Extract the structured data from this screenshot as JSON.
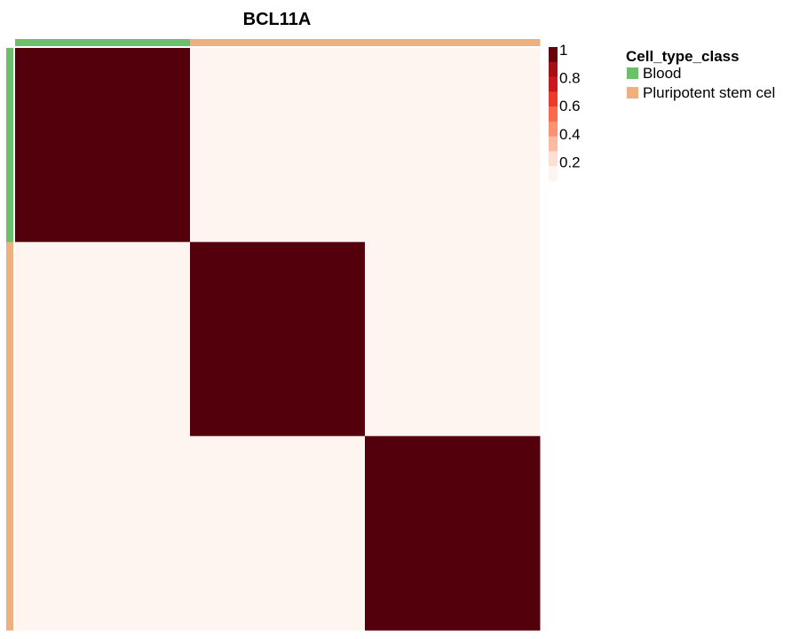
{
  "chart_data": {
    "type": "heatmap",
    "title": "BCL11A",
    "rows": 3,
    "cols": 3,
    "values": [
      [
        1,
        0,
        0
      ],
      [
        0,
        1,
        0
      ],
      [
        0,
        0,
        1
      ]
    ],
    "row_annotation": [
      "Blood",
      "Pluripotent stem cel",
      "Pluripotent stem cel"
    ],
    "col_annotation": [
      "Blood",
      "Pluripotent stem cel",
      "Pluripotent stem cel"
    ],
    "colorbar": {
      "ticks": [
        "1",
        "0.8",
        "0.6",
        "0.4",
        "0.2"
      ],
      "tick_values": [
        1,
        0.8,
        0.6,
        0.4,
        0.2
      ],
      "range": [
        0,
        1
      ],
      "colors": [
        "#fff5f0",
        "#fee0d2",
        "#fcbba1",
        "#fc9272",
        "#fb6a4a",
        "#ef3b2c",
        "#cb181d",
        "#a50f15",
        "#67000d"
      ]
    },
    "legend": {
      "title": "Cell_type_class",
      "entries": [
        {
          "label": "Blood",
          "color": "#6cbf6c"
        },
        {
          "label": "Pluripotent stem cel",
          "color": "#eeb07e"
        }
      ]
    }
  }
}
